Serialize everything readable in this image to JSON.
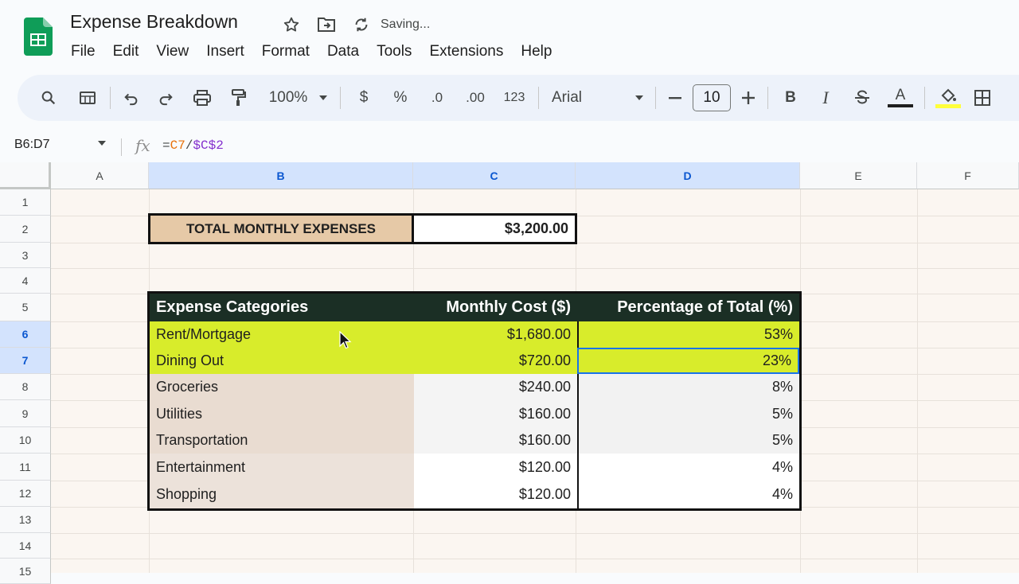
{
  "doc": {
    "title": "Expense Breakdown",
    "status": "Saving..."
  },
  "menu": [
    "File",
    "Edit",
    "View",
    "Insert",
    "Format",
    "Data",
    "Tools",
    "Extensions",
    "Help"
  ],
  "toolbar": {
    "zoom": "100%",
    "currency": "$",
    "percent": "%",
    "dec_dec": ".0",
    "inc_dec": ".00",
    "number_format": "123",
    "font": "Arial",
    "font_size": "10",
    "bold": "B",
    "italic": "I",
    "text_color": "A"
  },
  "formula_bar": {
    "name_box": "B6:D7",
    "formula_prefix": "=",
    "ref1": "C7",
    "op": "/",
    "ref2": "$C$2"
  },
  "columns": [
    "A",
    "B",
    "C",
    "D",
    "E",
    "F"
  ],
  "rows": [
    "1",
    "2",
    "3",
    "4",
    "5",
    "6",
    "7",
    "8",
    "9",
    "10",
    "11",
    "12",
    "13",
    "14",
    "15"
  ],
  "summary": {
    "label": "TOTAL MONTHLY EXPENSES",
    "value": "$3,200.00"
  },
  "table": {
    "headers": [
      "Expense Categories",
      "Monthly Cost ($)",
      "Percentage of Total (%)"
    ],
    "rows": [
      {
        "category": "Rent/Mortgage",
        "cost": "$1,680.00",
        "pct": "53%"
      },
      {
        "category": "Dining Out",
        "cost": "$720.00",
        "pct": "23%"
      },
      {
        "category": "Groceries",
        "cost": "$240.00",
        "pct": "8%"
      },
      {
        "category": "Utilities",
        "cost": "$160.00",
        "pct": "5%"
      },
      {
        "category": "Transportation",
        "cost": "$160.00",
        "pct": "5%"
      },
      {
        "category": "Entertainment",
        "cost": "$120.00",
        "pct": "4%"
      },
      {
        "category": "Shopping",
        "cost": "$120.00",
        "pct": "4%"
      }
    ]
  },
  "colors": {
    "header_bg": "#1b2f25",
    "highlight": "#d8ec2b",
    "summary_label_bg": "#e6c9a7",
    "selection": "#1a73e8",
    "sheets_green": "#0f9d58"
  }
}
